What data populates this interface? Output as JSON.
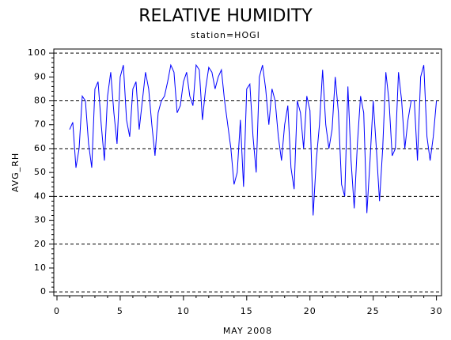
{
  "chart_data": {
    "type": "line",
    "title": "RELATIVE HUMIDITY",
    "subtitle": "station=HOGI",
    "x_label": "MAY 2008",
    "y_label": "AVG_RH",
    "xlim": [
      -0.25,
      30.4
    ],
    "ylim": [
      -1.6,
      101.7
    ],
    "xticks": [
      0,
      5,
      10,
      15,
      20,
      25,
      30
    ],
    "yticks": [
      0,
      10,
      20,
      30,
      40,
      50,
      60,
      70,
      80,
      90,
      100
    ],
    "grid": true,
    "x": [
      1,
      1.25,
      1.5,
      1.75,
      2,
      2.25,
      2.5,
      2.75,
      3,
      3.25,
      3.5,
      3.75,
      4,
      4.25,
      4.5,
      4.75,
      5,
      5.25,
      5.5,
      5.75,
      6,
      6.25,
      6.5,
      6.75,
      7,
      7.25,
      7.5,
      7.75,
      8,
      8.25,
      8.5,
      8.75,
      9,
      9.25,
      9.5,
      9.75,
      10,
      10.25,
      10.5,
      10.75,
      11,
      11.25,
      11.5,
      11.75,
      12,
      12.25,
      12.5,
      12.75,
      13,
      13.25,
      13.5,
      13.75,
      14,
      14.25,
      14.5,
      14.75,
      15,
      15.25,
      15.5,
      15.75,
      16,
      16.25,
      16.5,
      16.75,
      17,
      17.25,
      17.5,
      17.75,
      18,
      18.25,
      18.5,
      18.75,
      19,
      19.25,
      19.5,
      19.75,
      20,
      20.25,
      20.5,
      20.75,
      21,
      21.25,
      21.5,
      21.75,
      22,
      22.25,
      22.5,
      22.75,
      23,
      23.25,
      23.5,
      23.75,
      24,
      24.25,
      24.5,
      24.75,
      25,
      25.25,
      25.5,
      25.75,
      26,
      26.25,
      26.5,
      26.75,
      27,
      27.25,
      27.5,
      27.75,
      28,
      28.25,
      28.5,
      28.75,
      29,
      29.25,
      29.5,
      29.75,
      30
    ],
    "series": [
      {
        "name": "AVG_RH",
        "color": "#0000ff",
        "values": [
          68,
          71,
          52,
          60,
          82,
          80,
          62,
          52,
          85,
          88,
          70,
          55,
          82,
          92,
          75,
          62,
          90,
          95,
          72,
          65,
          85,
          88,
          68,
          80,
          92,
          85,
          70,
          57,
          75,
          80,
          82,
          88,
          95,
          92,
          75,
          78,
          88,
          92,
          82,
          78,
          95,
          93,
          72,
          85,
          94,
          92,
          85,
          90,
          93,
          80,
          70,
          60,
          45,
          50,
          72,
          44,
          85,
          87,
          65,
          50,
          90,
          95,
          85,
          70,
          85,
          80,
          65,
          55,
          70,
          78,
          52,
          43,
          80,
          75,
          60,
          82,
          76,
          32,
          55,
          70,
          93,
          70,
          60,
          68,
          90,
          75,
          45,
          40,
          86,
          55,
          35,
          62,
          82,
          75,
          33,
          55,
          80,
          60,
          38,
          60,
          92,
          80,
          57,
          60,
          92,
          80,
          60,
          72,
          80,
          80,
          55,
          90,
          95,
          65,
          55,
          65,
          80
        ]
      }
    ]
  }
}
